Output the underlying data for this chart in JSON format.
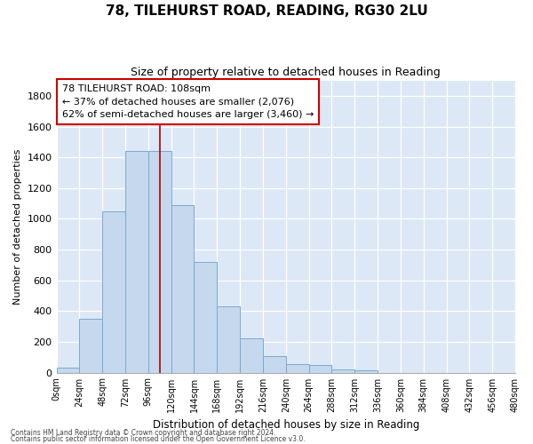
{
  "title1": "78, TILEHURST ROAD, READING, RG30 2LU",
  "title2": "Size of property relative to detached houses in Reading",
  "xlabel": "Distribution of detached houses by size in Reading",
  "ylabel": "Number of detached properties",
  "bar_color": "#c5d8ee",
  "bar_edgecolor": "#7aaad0",
  "background_color": "#dce8f5",
  "annotation_text": "78 TILEHURST ROAD: 108sqm\n← 37% of detached houses are smaller (2,076)\n62% of semi-detached houses are larger (3,460) →",
  "marker_value": 108,
  "marker_color": "#aa0000",
  "bins": [
    0,
    24,
    48,
    72,
    96,
    120,
    144,
    168,
    192,
    216,
    240,
    264,
    288,
    312,
    336,
    360,
    384,
    408,
    432,
    456,
    480
  ],
  "bin_labels": [
    "0sqm",
    "24sqm",
    "48sqm",
    "72sqm",
    "96sqm",
    "120sqm",
    "144sqm",
    "168sqm",
    "192sqm",
    "216sqm",
    "240sqm",
    "264sqm",
    "288sqm",
    "312sqm",
    "336sqm",
    "360sqm",
    "384sqm",
    "408sqm",
    "432sqm",
    "456sqm",
    "480sqm"
  ],
  "values": [
    30,
    350,
    1050,
    1440,
    1440,
    1090,
    720,
    430,
    220,
    105,
    55,
    50,
    20,
    15,
    0,
    0,
    0,
    0,
    0,
    0
  ],
  "ylim_max": 1900,
  "yticks": [
    0,
    200,
    400,
    600,
    800,
    1000,
    1200,
    1400,
    1600,
    1800
  ],
  "footer1": "Contains HM Land Registry data © Crown copyright and database right 2024.",
  "footer2": "Contains public sector information licensed under the Open Government Licence v3.0."
}
